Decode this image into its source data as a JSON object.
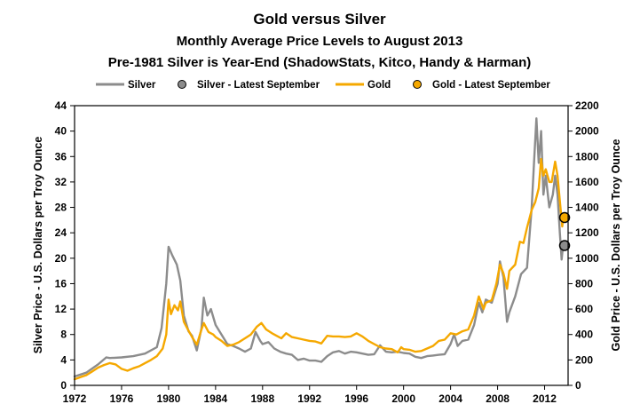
{
  "chart_data": {
    "type": "line",
    "title": "Gold versus Silver",
    "subtitle_1": "Monthly Average Price Levels to August 2013",
    "subtitle_2": "Pre-1981 Silver is Year-End (ShadowStats, Kitco, Handy & Harman)",
    "ylabel_left": "Silver  Price - U.S. Dollars per Troy Ounce",
    "ylabel_right": "Gold Price - U.S. Dollars per Troy Ounce",
    "xlim": [
      1972,
      2014
    ],
    "ylim_left": [
      0,
      44
    ],
    "ylim_right": [
      0,
      2200
    ],
    "x_ticks": [
      "1972",
      "1976",
      "1980",
      "1984",
      "1988",
      "1992",
      "1996",
      "2000",
      "2004",
      "2008",
      "2012"
    ],
    "y_ticks_left": [
      "0",
      "4",
      "8",
      "12",
      "16",
      "20",
      "24",
      "28",
      "32",
      "36",
      "40",
      "44"
    ],
    "y_ticks_right": [
      "0",
      "200",
      "400",
      "600",
      "800",
      "1000",
      "1200",
      "1400",
      "1600",
      "1800",
      "2000",
      "2200"
    ],
    "grid": false,
    "legend": [
      {
        "label": "Silver",
        "kind": "line",
        "color": "#8c8c8c"
      },
      {
        "label": "Silver - Latest September",
        "kind": "marker",
        "color": "#8c8c8c"
      },
      {
        "label": "Gold",
        "kind": "line",
        "color": "#f5a800"
      },
      {
        "label": "Gold - Latest September",
        "kind": "marker",
        "color": "#f5a800"
      }
    ],
    "series": [
      {
        "name": "Silver",
        "axis": "left",
        "color": "#8c8c8c",
        "points": [
          [
            1972.0,
            1.4
          ],
          [
            1973.0,
            2.0
          ],
          [
            1974.0,
            3.3
          ],
          [
            1974.7,
            4.4
          ],
          [
            1975.0,
            4.3
          ],
          [
            1976.0,
            4.4
          ],
          [
            1977.0,
            4.6
          ],
          [
            1978.0,
            5.0
          ],
          [
            1979.0,
            6.0
          ],
          [
            1979.4,
            9.0
          ],
          [
            1979.8,
            16.0
          ],
          [
            1980.0,
            21.8
          ],
          [
            1980.3,
            20.5
          ],
          [
            1980.7,
            19.0
          ],
          [
            1981.0,
            16.5
          ],
          [
            1981.3,
            11.0
          ],
          [
            1981.7,
            8.5
          ],
          [
            1982.0,
            7.8
          ],
          [
            1982.4,
            5.5
          ],
          [
            1982.8,
            9.0
          ],
          [
            1983.0,
            13.8
          ],
          [
            1983.3,
            11.0
          ],
          [
            1983.6,
            12.0
          ],
          [
            1984.0,
            9.5
          ],
          [
            1984.5,
            8.0
          ],
          [
            1985.0,
            6.5
          ],
          [
            1985.5,
            6.2
          ],
          [
            1986.0,
            5.8
          ],
          [
            1986.5,
            5.3
          ],
          [
            1987.0,
            5.8
          ],
          [
            1987.4,
            8.4
          ],
          [
            1987.8,
            7.0
          ],
          [
            1988.0,
            6.5
          ],
          [
            1988.5,
            6.8
          ],
          [
            1989.0,
            5.8
          ],
          [
            1989.5,
            5.3
          ],
          [
            1990.0,
            5.0
          ],
          [
            1990.5,
            4.8
          ],
          [
            1991.0,
            4.0
          ],
          [
            1991.5,
            4.2
          ],
          [
            1992.0,
            3.9
          ],
          [
            1992.5,
            3.9
          ],
          [
            1993.0,
            3.7
          ],
          [
            1993.5,
            4.6
          ],
          [
            1994.0,
            5.2
          ],
          [
            1994.5,
            5.4
          ],
          [
            1995.0,
            5.0
          ],
          [
            1995.5,
            5.3
          ],
          [
            1996.0,
            5.2
          ],
          [
            1996.5,
            5.0
          ],
          [
            1997.0,
            4.8
          ],
          [
            1997.5,
            4.9
          ],
          [
            1998.0,
            6.3
          ],
          [
            1998.5,
            5.3
          ],
          [
            1999.0,
            5.2
          ],
          [
            1999.5,
            5.3
          ],
          [
            2000.0,
            5.1
          ],
          [
            2000.5,
            5.0
          ],
          [
            2001.0,
            4.5
          ],
          [
            2001.5,
            4.3
          ],
          [
            2002.0,
            4.6
          ],
          [
            2002.5,
            4.7
          ],
          [
            2003.0,
            4.8
          ],
          [
            2003.5,
            4.9
          ],
          [
            2004.0,
            6.5
          ],
          [
            2004.3,
            8.0
          ],
          [
            2004.6,
            6.2
          ],
          [
            2005.0,
            7.0
          ],
          [
            2005.5,
            7.2
          ],
          [
            2006.0,
            9.5
          ],
          [
            2006.4,
            13.0
          ],
          [
            2006.7,
            11.5
          ],
          [
            2007.0,
            13.5
          ],
          [
            2007.5,
            13.0
          ],
          [
            2008.0,
            16.0
          ],
          [
            2008.2,
            19.5
          ],
          [
            2008.5,
            17.0
          ],
          [
            2008.8,
            10.0
          ],
          [
            2009.0,
            11.5
          ],
          [
            2009.5,
            14.0
          ],
          [
            2010.0,
            17.5
          ],
          [
            2010.5,
            18.5
          ],
          [
            2010.9,
            28.0
          ],
          [
            2011.1,
            35.0
          ],
          [
            2011.3,
            42.0
          ],
          [
            2011.5,
            35.0
          ],
          [
            2011.7,
            40.0
          ],
          [
            2011.9,
            30.0
          ],
          [
            2012.1,
            33.0
          ],
          [
            2012.4,
            28.0
          ],
          [
            2012.7,
            30.0
          ],
          [
            2012.9,
            33.0
          ],
          [
            2013.1,
            30.0
          ],
          [
            2013.3,
            24.0
          ],
          [
            2013.45,
            19.8
          ],
          [
            2013.6,
            22.5
          ]
        ]
      },
      {
        "name": "Gold",
        "axis": "right",
        "color": "#f5a800",
        "points": [
          [
            1972.0,
            48
          ],
          [
            1972.5,
            65
          ],
          [
            1973.0,
            80
          ],
          [
            1973.5,
            110
          ],
          [
            1974.0,
            140
          ],
          [
            1974.5,
            160
          ],
          [
            1975.0,
            175
          ],
          [
            1975.5,
            165
          ],
          [
            1976.0,
            130
          ],
          [
            1976.5,
            115
          ],
          [
            1977.0,
            135
          ],
          [
            1977.5,
            150
          ],
          [
            1978.0,
            175
          ],
          [
            1978.5,
            200
          ],
          [
            1979.0,
            230
          ],
          [
            1979.5,
            290
          ],
          [
            1979.8,
            400
          ],
          [
            1980.0,
            675
          ],
          [
            1980.2,
            560
          ],
          [
            1980.5,
            630
          ],
          [
            1980.8,
            590
          ],
          [
            1981.0,
            660
          ],
          [
            1981.3,
            500
          ],
          [
            1981.7,
            430
          ],
          [
            1982.0,
            380
          ],
          [
            1982.4,
            320
          ],
          [
            1982.8,
            440
          ],
          [
            1983.0,
            490
          ],
          [
            1983.4,
            420
          ],
          [
            1983.8,
            400
          ],
          [
            1984.0,
            380
          ],
          [
            1984.5,
            350
          ],
          [
            1985.0,
            310
          ],
          [
            1985.5,
            320
          ],
          [
            1986.0,
            340
          ],
          [
            1986.5,
            370
          ],
          [
            1987.0,
            400
          ],
          [
            1987.5,
            460
          ],
          [
            1987.9,
            490
          ],
          [
            1988.3,
            440
          ],
          [
            1988.8,
            410
          ],
          [
            1989.2,
            390
          ],
          [
            1989.6,
            370
          ],
          [
            1990.0,
            410
          ],
          [
            1990.5,
            380
          ],
          [
            1991.0,
            370
          ],
          [
            1991.5,
            360
          ],
          [
            1992.0,
            350
          ],
          [
            1992.5,
            345
          ],
          [
            1993.0,
            330
          ],
          [
            1993.5,
            390
          ],
          [
            1994.0,
            385
          ],
          [
            1994.5,
            385
          ],
          [
            1995.0,
            380
          ],
          [
            1995.5,
            385
          ],
          [
            1996.0,
            410
          ],
          [
            1996.5,
            385
          ],
          [
            1997.0,
            350
          ],
          [
            1997.5,
            325
          ],
          [
            1998.0,
            300
          ],
          [
            1998.5,
            290
          ],
          [
            1999.0,
            285
          ],
          [
            1999.5,
            260
          ],
          [
            1999.8,
            300
          ],
          [
            2000.0,
            285
          ],
          [
            2000.5,
            280
          ],
          [
            2001.0,
            265
          ],
          [
            2001.5,
            270
          ],
          [
            2002.0,
            290
          ],
          [
            2002.5,
            310
          ],
          [
            2003.0,
            350
          ],
          [
            2003.5,
            360
          ],
          [
            2004.0,
            410
          ],
          [
            2004.5,
            400
          ],
          [
            2005.0,
            425
          ],
          [
            2005.5,
            440
          ],
          [
            2006.0,
            550
          ],
          [
            2006.4,
            700
          ],
          [
            2006.8,
            600
          ],
          [
            2007.0,
            650
          ],
          [
            2007.5,
            670
          ],
          [
            2007.9,
            800
          ],
          [
            2008.2,
            950
          ],
          [
            2008.5,
            880
          ],
          [
            2008.8,
            760
          ],
          [
            2009.0,
            900
          ],
          [
            2009.5,
            950
          ],
          [
            2009.9,
            1130
          ],
          [
            2010.2,
            1120
          ],
          [
            2010.5,
            1240
          ],
          [
            2010.9,
            1380
          ],
          [
            2011.2,
            1440
          ],
          [
            2011.5,
            1550
          ],
          [
            2011.7,
            1780
          ],
          [
            2011.9,
            1650
          ],
          [
            2012.1,
            1700
          ],
          [
            2012.4,
            1600
          ],
          [
            2012.6,
            1600
          ],
          [
            2012.9,
            1760
          ],
          [
            2013.1,
            1650
          ],
          [
            2013.3,
            1450
          ],
          [
            2013.5,
            1250
          ],
          [
            2013.6,
            1330
          ]
        ]
      }
    ],
    "markers": [
      {
        "name": "Silver - Latest September",
        "axis": "left",
        "x": 2013.7,
        "y": 22.0,
        "color": "#8c8c8c"
      },
      {
        "name": "Gold - Latest September",
        "axis": "right",
        "x": 2013.7,
        "y": 1320,
        "color": "#f5a800"
      }
    ]
  }
}
